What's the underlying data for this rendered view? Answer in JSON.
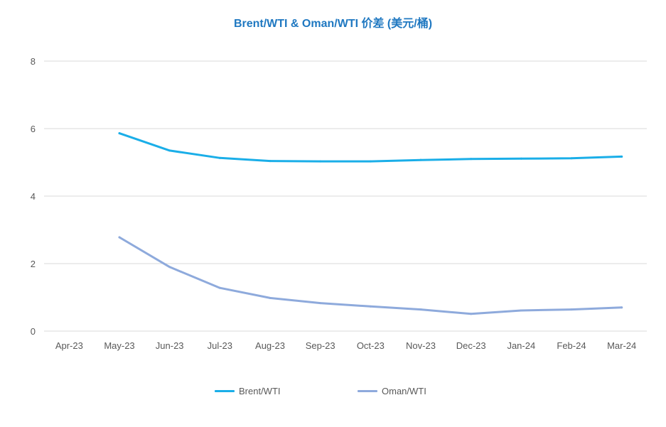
{
  "chart_data": {
    "type": "line",
    "title": "Brent/WTI & Oman/WTI 价差 (美元/桶)",
    "xlabel": "",
    "ylabel": "",
    "categories": [
      "Apr-23",
      "May-23",
      "Jun-23",
      "Jul-23",
      "Aug-23",
      "Sep-23",
      "Oct-23",
      "Nov-23",
      "Dec-23",
      "Jan-24",
      "Feb-24",
      "Mar-24"
    ],
    "ylim": [
      0,
      8
    ],
    "yticks": [
      0,
      2,
      4,
      6,
      8
    ],
    "grid": true,
    "legend_position": "bottom",
    "series": [
      {
        "name": "Brent/WTI",
        "color": "#1aaee8",
        "values": [
          null,
          5.86,
          5.35,
          5.13,
          5.04,
          5.03,
          5.03,
          5.07,
          5.1,
          5.11,
          5.12,
          5.17
        ]
      },
      {
        "name": "Oman/WTI",
        "color": "#8eaadc",
        "values": [
          null,
          2.78,
          1.9,
          1.28,
          0.98,
          0.83,
          0.73,
          0.64,
          0.51,
          0.61,
          0.64,
          0.7
        ]
      }
    ]
  },
  "colors": {
    "title": "#1f78c1",
    "grid": "#d9d9d9",
    "tick_text": "#595959"
  }
}
